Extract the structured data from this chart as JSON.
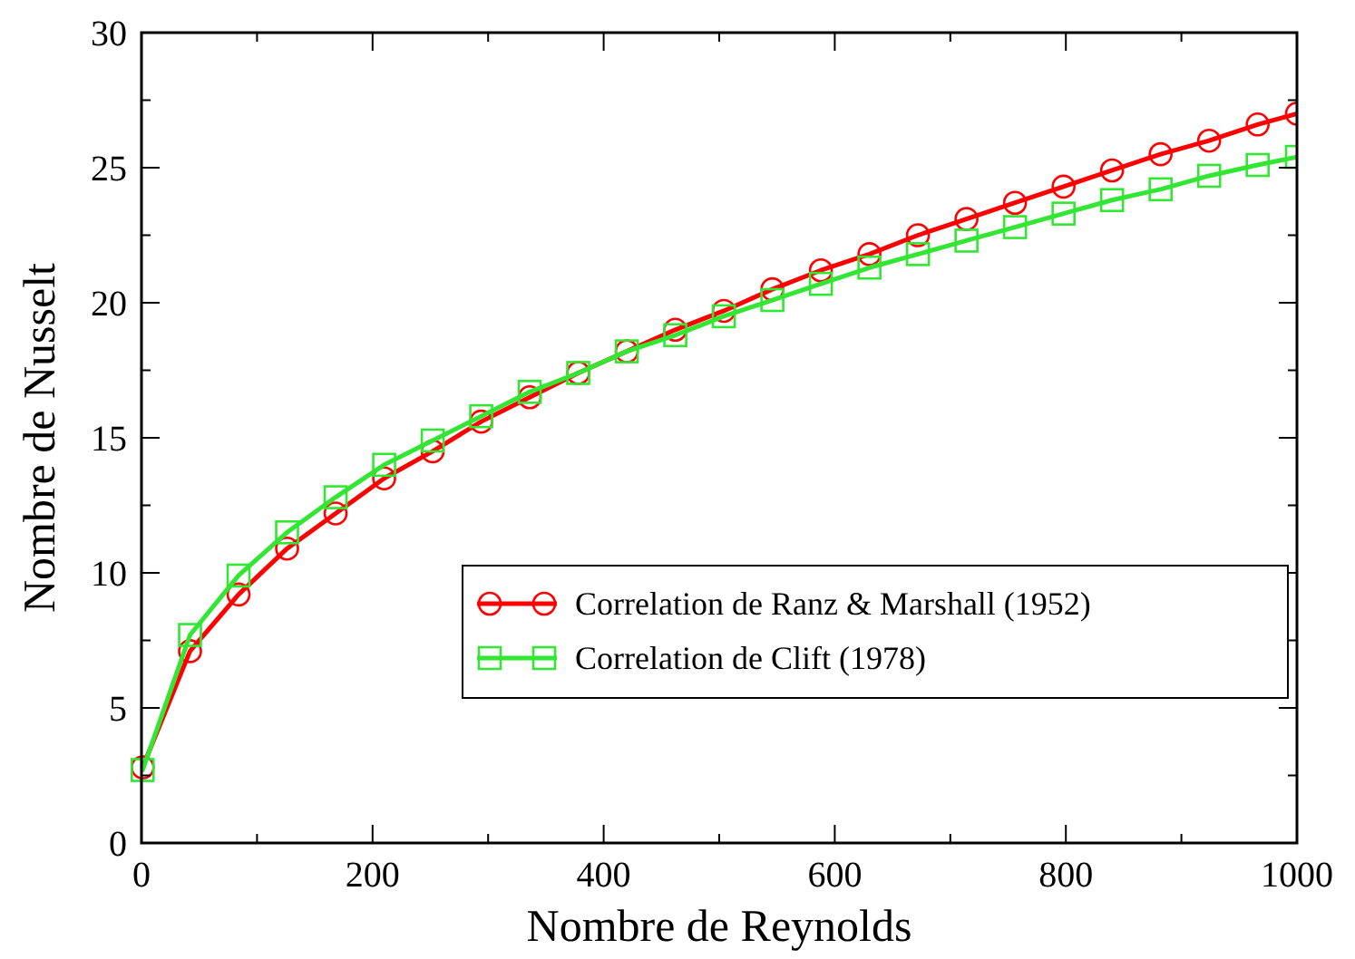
{
  "chart_data": {
    "type": "line",
    "xlabel": "Nombre de Reynolds",
    "ylabel": "Nombre de Nusselt",
    "xlim": [
      0,
      1000
    ],
    "ylim": [
      0,
      30
    ],
    "xticks": [
      0,
      200,
      400,
      600,
      800,
      1000
    ],
    "yticks": [
      0,
      5,
      10,
      15,
      20,
      25,
      30
    ],
    "grid": false,
    "legend": "right",
    "line_style": "solid",
    "x": [
      1,
      42,
      84,
      126,
      168,
      210,
      252,
      294,
      336,
      378,
      420,
      462,
      504,
      546,
      588,
      630,
      672,
      714,
      756,
      798,
      840,
      882,
      924,
      966,
      1000
    ],
    "series": [
      {
        "name": "Correlation de Ranz & Marshall (1952)",
        "color": "#ff0000",
        "marker": "circle",
        "values": [
          2.8,
          7.1,
          9.2,
          10.9,
          12.2,
          13.5,
          14.5,
          15.6,
          16.5,
          17.4,
          18.2,
          19.0,
          19.7,
          20.5,
          21.2,
          21.8,
          22.5,
          23.1,
          23.7,
          24.3,
          24.9,
          25.5,
          26.0,
          26.6,
          27.0
        ]
      },
      {
        "name": "Correlation de Clift (1978)",
        "color": "#33e633",
        "marker": "square",
        "values": [
          2.7,
          7.7,
          9.9,
          11.5,
          12.8,
          14.0,
          14.9,
          15.8,
          16.7,
          17.4,
          18.2,
          18.8,
          19.5,
          20.1,
          20.7,
          21.3,
          21.8,
          22.3,
          22.8,
          23.3,
          23.8,
          24.2,
          24.7,
          25.1,
          25.4
        ]
      }
    ]
  }
}
